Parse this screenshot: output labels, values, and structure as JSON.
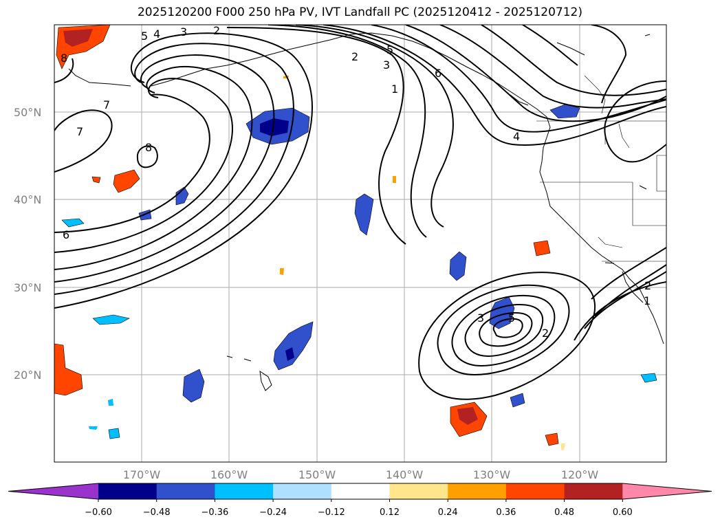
{
  "title": "2025120200 F000 250 hPa PV, IVT Landfall PC (2025120412 - 2025120712)",
  "map": {
    "lat_labels": [
      "50°N",
      "40°N",
      "30°N",
      "20°N"
    ],
    "lon_labels": [
      "170°W",
      "160°W",
      "150°W",
      "140°W",
      "130°W",
      "120°W"
    ],
    "contour_labels": [
      {
        "text": "5",
        "ref": "nw-5"
      },
      {
        "text": "4",
        "ref": "nw-4"
      },
      {
        "text": "3",
        "ref": "nw-3"
      },
      {
        "text": "2",
        "ref": "nw-2"
      },
      {
        "text": "8",
        "ref": "far-nw-8"
      },
      {
        "text": "7",
        "ref": "w-7a"
      },
      {
        "text": "7",
        "ref": "w-7b"
      },
      {
        "text": "8",
        "ref": "w-8"
      },
      {
        "text": "6",
        "ref": "w-6"
      },
      {
        "text": "2",
        "ref": "n-2"
      },
      {
        "text": "5",
        "ref": "n-5"
      },
      {
        "text": "3",
        "ref": "n-3"
      },
      {
        "text": "1",
        "ref": "n-1"
      },
      {
        "text": "6",
        "ref": "ne-6"
      },
      {
        "text": "4",
        "ref": "ne-4"
      },
      {
        "text": "3",
        "ref": "se-3"
      },
      {
        "text": "5",
        "ref": "se-5"
      },
      {
        "text": "2",
        "ref": "se-2"
      },
      {
        "text": "2",
        "ref": "e-2"
      },
      {
        "text": "1",
        "ref": "e-1"
      }
    ]
  },
  "colorbar": {
    "colors": [
      "#9933cc",
      "#00008b",
      "#3050cc",
      "#00bfff",
      "#b0e0ff",
      "#ffffff",
      "#ffe68c",
      "#ffa000",
      "#ff4500",
      "#b22222",
      "#ff88aa"
    ],
    "ticks": [
      "−0.60",
      "−0.48",
      "−0.36",
      "−0.24",
      "−0.12",
      "0.12",
      "0.24",
      "0.36",
      "0.48",
      "0.60"
    ]
  }
}
